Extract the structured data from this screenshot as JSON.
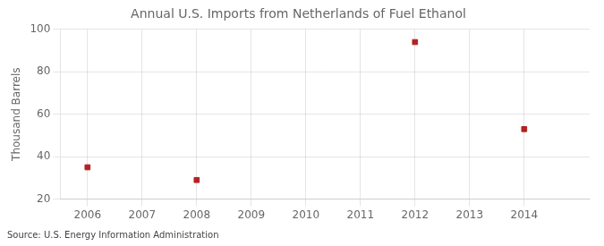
{
  "chart_data": {
    "type": "scatter",
    "title": "Annual U.S. Imports from Netherlands of Fuel Ethanol",
    "ylabel": "Thousand Barrels",
    "annotation": "Source: U.S. Energy Information Administration",
    "x": [
      2006,
      2008,
      2012,
      2014
    ],
    "values": [
      35,
      29,
      94,
      53
    ],
    "color": "#b22222",
    "marker": "square",
    "xlim": [
      2005.5,
      2015.2
    ],
    "xticks": [
      2006,
      2007,
      2008,
      2009,
      2010,
      2011,
      2012,
      2013,
      2014
    ],
    "ylim": [
      20,
      100
    ],
    "yticks": [
      20,
      40,
      60,
      80,
      100
    ],
    "grid": true
  }
}
